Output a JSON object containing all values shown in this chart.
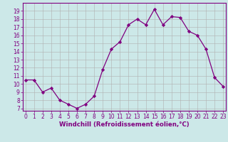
{
  "x": [
    0,
    1,
    2,
    3,
    4,
    5,
    6,
    7,
    8,
    9,
    10,
    11,
    12,
    13,
    14,
    15,
    16,
    17,
    18,
    19,
    20,
    21,
    22,
    23
  ],
  "y": [
    10.5,
    10.5,
    9.0,
    9.5,
    8.0,
    7.5,
    7.0,
    7.5,
    8.5,
    11.8,
    14.3,
    15.2,
    17.3,
    18.0,
    17.3,
    19.2,
    17.3,
    18.3,
    18.2,
    16.5,
    16.0,
    14.3,
    10.8,
    9.7
  ],
  "line_color": "#800080",
  "marker_color": "#800080",
  "bg_color": "#cce8e8",
  "grid_color": "#b0b0b0",
  "xlabel": "Windchill (Refroidissement éolien,°C)",
  "ylim_min": 7,
  "ylim_max": 20,
  "xlim_min": 0,
  "xlim_max": 23,
  "yticks": [
    7,
    8,
    9,
    10,
    11,
    12,
    13,
    14,
    15,
    16,
    17,
    18,
    19
  ],
  "xticks": [
    0,
    1,
    2,
    3,
    4,
    5,
    6,
    7,
    8,
    9,
    10,
    11,
    12,
    13,
    14,
    15,
    16,
    17,
    18,
    19,
    20,
    21,
    22,
    23
  ],
  "tick_color": "#800080",
  "label_color": "#800080",
  "axis_color": "#800080",
  "tick_fontsize": 5.5,
  "xlabel_fontsize": 6.2
}
